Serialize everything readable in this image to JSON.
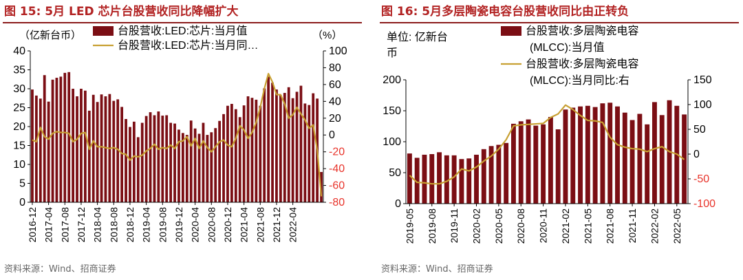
{
  "left": {
    "title": "图 15:  5月 LED 芯片台股营收同比降幅扩大",
    "source": "资料来源：Wind、招商证券",
    "unit_left": "（亿新台币）",
    "unit_right": "（%）",
    "colors": {
      "bar": "#7b0e14",
      "line": "#c8a032",
      "axis": "#000000",
      "right_neg": "#e8332a"
    }
  },
  "right": {
    "title": "图 16:  5月多层陶瓷电容台股营收同比由正转负",
    "source": "资料来源：Wind、招商证券",
    "unit_left": "单位: 亿新台币",
    "colors": {
      "bar": "#7b0e14",
      "line": "#c8a032",
      "axis": "#000000",
      "right_neg": "#e8332a"
    }
  },
  "chart_data": [
    {
      "type": "bar",
      "title": "图 15:  5月 LED 芯片台股营收同比降幅扩大",
      "x_start": "2016-12",
      "xtick_labels": [
        "2016-12",
        "2017-04",
        "2017-08",
        "2017-12",
        "2018-04",
        "2018-08",
        "2018-12",
        "2019-04",
        "2019-08",
        "2019-12",
        "2020-04",
        "2020-08",
        "2020-12",
        "2021-04",
        "2021-08",
        "2021-12",
        "2022-04"
      ],
      "xtick_every": 4,
      "ylim": [
        0,
        40
      ],
      "yticks": [
        0,
        5,
        10,
        15,
        20,
        25,
        30,
        35,
        40
      ],
      "y2lim": [
        -80,
        100
      ],
      "y2ticks": [
        -80,
        -60,
        -40,
        -20,
        0,
        20,
        40,
        60,
        80,
        100
      ],
      "legend": [
        "台股营收:LED:芯片:当月值",
        "台股营收:LED:芯片:当月同…"
      ],
      "series": [
        {
          "name": "台股营收:LED:芯片:当月值",
          "type": "bar",
          "axis": "left",
          "values": [
            29.8,
            28.2,
            27.4,
            33.6,
            26.6,
            32.4,
            32.9,
            33.2,
            34.2,
            34.4,
            30.0,
            28.0,
            30.0,
            29.5,
            24.2,
            28.4,
            26.5,
            28.5,
            28.0,
            28.6,
            26.8,
            27.2,
            25.2,
            22.0,
            19.9,
            21.3,
            17.2,
            21.0,
            22.8,
            23.8,
            23.0,
            24.0,
            22.9,
            23.0,
            21.0,
            20.8,
            19.2,
            18.3,
            17.8,
            21.6,
            19.5,
            18.1,
            21.0,
            17.8,
            18.5,
            19.6,
            21.5,
            23.3,
            25.5,
            26.0,
            24.6,
            22.5,
            25.6,
            28.0,
            27.6,
            27.1,
            25.5,
            30.1,
            33.2,
            31.6,
            29.8,
            28.3,
            28.9,
            30.4,
            27.5,
            29.2,
            30.8,
            26.1,
            25.7,
            28.8,
            27.4,
            8.0
          ]
        },
        {
          "name": "台股营收:LED:芯片:当月同…",
          "type": "line",
          "axis": "right",
          "values": [
            -6.0,
            -8.0,
            9.0,
            -2.0,
            -5.0,
            2.0,
            4.0,
            3.0,
            3.0,
            2.0,
            -8.0,
            -5.0,
            2.0,
            3.0,
            -17.0,
            -7.0,
            -14.0,
            -14.0,
            -15.0,
            -16.0,
            -15.0,
            -17.0,
            -22.0,
            -23.0,
            -30.0,
            -25.0,
            -26.0,
            -24.0,
            -19.0,
            -16.0,
            -11.0,
            -17.0,
            -15.0,
            -16.0,
            -12.0,
            -16.0,
            -8.0,
            -7.0,
            -2.0,
            -13.0,
            -4.0,
            -16.0,
            -7.0,
            -15.0,
            -20.0,
            -14.0,
            -8.0,
            -6.0,
            -12.0,
            -14.0,
            -4.0,
            11.0,
            6.0,
            -4.0,
            3.0,
            15.0,
            33.0,
            55.0,
            73.0,
            63.0,
            48.0,
            48.0,
            37.0,
            20.0,
            24.0,
            33.0,
            25.0,
            18.0,
            8.0,
            12.0,
            -18.0,
            -73.0
          ]
        }
      ]
    },
    {
      "type": "bar",
      "title": "图 16:  5月多层陶瓷电容台股营收同比由正转负",
      "x_start": "2019-05",
      "xtick_labels": [
        "2019-05",
        "2019-08",
        "2019-11",
        "2020-02",
        "2020-05",
        "2020-08",
        "2020-11",
        "2021-02",
        "2021-05",
        "2021-08",
        "2021-11",
        "2022-02",
        "2022-05"
      ],
      "xtick_every": 3,
      "ylim": [
        0,
        200
      ],
      "yticks": [
        0,
        50,
        100,
        150,
        200
      ],
      "y2lim": [
        -100,
        150
      ],
      "y2ticks": [
        -100,
        -50,
        0,
        50,
        100,
        150
      ],
      "legend": [
        "台股营收:多层陶瓷电容(MLCC):当月值",
        "台股营收:多层陶瓷电容(MLCC):当月同比:右"
      ],
      "series": [
        {
          "name": "台股营收:多层陶瓷电容(MLCC):当月值",
          "type": "bar",
          "axis": "left",
          "values": [
            81,
            74,
            79,
            80,
            83,
            78,
            78,
            72,
            73,
            79,
            88,
            93,
            95,
            98,
            129,
            133,
            136,
            126,
            128,
            140,
            120,
            152,
            155,
            157,
            158,
            156,
            162,
            163,
            157,
            147,
            135,
            145,
            128,
            164,
            143,
            167,
            158,
            144
          ]
        },
        {
          "name": "台股营收:多层陶瓷电容(MLCC):当月同比:右",
          "type": "line",
          "axis": "right",
          "values": [
            -43,
            -57,
            -58,
            -60,
            -60,
            -55,
            -46,
            -30,
            -34,
            -26,
            -14,
            -4,
            10,
            29,
            57,
            59,
            60,
            61,
            62,
            74,
            81,
            99,
            90,
            78,
            68,
            67,
            64,
            34,
            19,
            14,
            11,
            10,
            5,
            11,
            15,
            5,
            0,
            -11
          ]
        }
      ]
    }
  ]
}
